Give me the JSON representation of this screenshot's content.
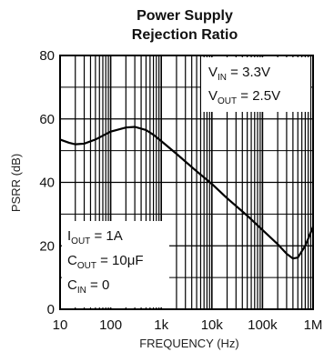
{
  "chart_data": {
    "type": "line",
    "title_line1": "Power Supply",
    "title_line2": "Rejection Ratio",
    "xlabel": "FREQUENCY (Hz)",
    "ylabel": "PSRR (dB)",
    "x_scale": "log",
    "xlim": [
      10,
      1000000
    ],
    "ylim": [
      0,
      80
    ],
    "grid": true,
    "x_ticks": [
      {
        "value": 10,
        "label": "10"
      },
      {
        "value": 100,
        "label": "100"
      },
      {
        "value": 1000,
        "label": "1k"
      },
      {
        "value": 10000,
        "label": "10k"
      },
      {
        "value": 100000,
        "label": "100k"
      },
      {
        "value": 1000000,
        "label": "1M"
      }
    ],
    "y_ticks": [
      {
        "value": 0,
        "label": "0"
      },
      {
        "value": 20,
        "label": "20"
      },
      {
        "value": 40,
        "label": "40"
      },
      {
        "value": 60,
        "label": "60"
      },
      {
        "value": 80,
        "label": "80"
      }
    ],
    "series": [
      {
        "x": [
          10,
          15,
          20,
          30,
          50,
          100,
          200,
          300,
          500,
          700,
          1000,
          2000,
          5000,
          10000,
          20000,
          50000,
          100000,
          200000,
          300000,
          400000,
          500000,
          700000,
          1000000
        ],
        "y": [
          53.5,
          52.5,
          52,
          52.2,
          53.5,
          56,
          57.3,
          57.5,
          56.5,
          55,
          53,
          49,
          43.5,
          39.5,
          35,
          29.5,
          25,
          20.5,
          17.5,
          16,
          16.3,
          20,
          26
        ]
      }
    ],
    "annotations": {
      "top_right": {
        "line1": {
          "main": "V",
          "sub": "IN",
          "rest": " = 3.3V"
        },
        "line2": {
          "main": "V",
          "sub": "OUT",
          "rest": " = 2.5V"
        }
      },
      "bottom_left": {
        "line1": {
          "main": "I",
          "sub": "OUT",
          "rest": " = 1A"
        },
        "line2": {
          "main": "C",
          "sub": "OUT",
          "rest": " = 10μF"
        },
        "line3": {
          "main": "C",
          "sub": "IN",
          "rest": " = 0"
        }
      }
    }
  }
}
